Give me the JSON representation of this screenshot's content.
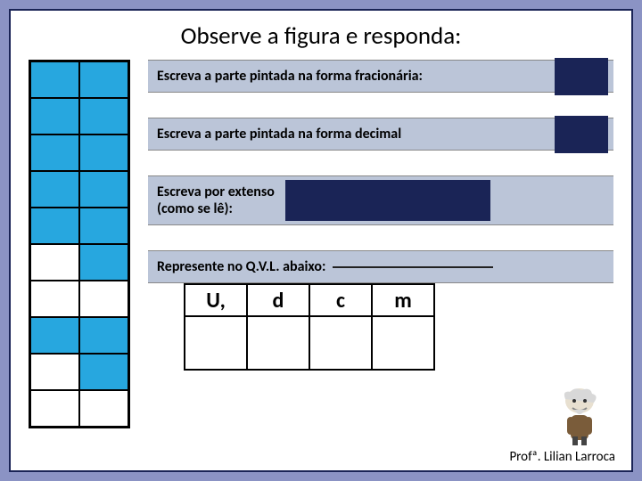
{
  "title": "Observe a figura e responda:",
  "figure": {
    "cols": 2,
    "rows": 10,
    "filled_color": "#27a7df",
    "empty_color": "#ffffff",
    "border_color": "#000000",
    "cells": [
      [
        true,
        true
      ],
      [
        true,
        true
      ],
      [
        true,
        true
      ],
      [
        true,
        true
      ],
      [
        true,
        true
      ],
      [
        false,
        true
      ],
      [
        false,
        false
      ],
      [
        true,
        true
      ],
      [
        false,
        true
      ],
      [
        false,
        false
      ]
    ]
  },
  "prompts": {
    "p1": "Escreva a parte pintada na forma fracionária:",
    "p2": "Escreva a parte pintada na forma decimal",
    "p3a": "Escreva por extenso",
    "p3b": "(como se lê):",
    "p4": "Represente no Q.V.L. abaixo:"
  },
  "qvl": {
    "headers": [
      "U,",
      "d",
      "c",
      "m"
    ]
  },
  "footer": "Profª. Lilian Larroca",
  "colors": {
    "frame": "#8b93c4",
    "page_border": "#1a2456",
    "prompt_bg": "#bbc5d8",
    "answer_dark": "#1a2456"
  }
}
